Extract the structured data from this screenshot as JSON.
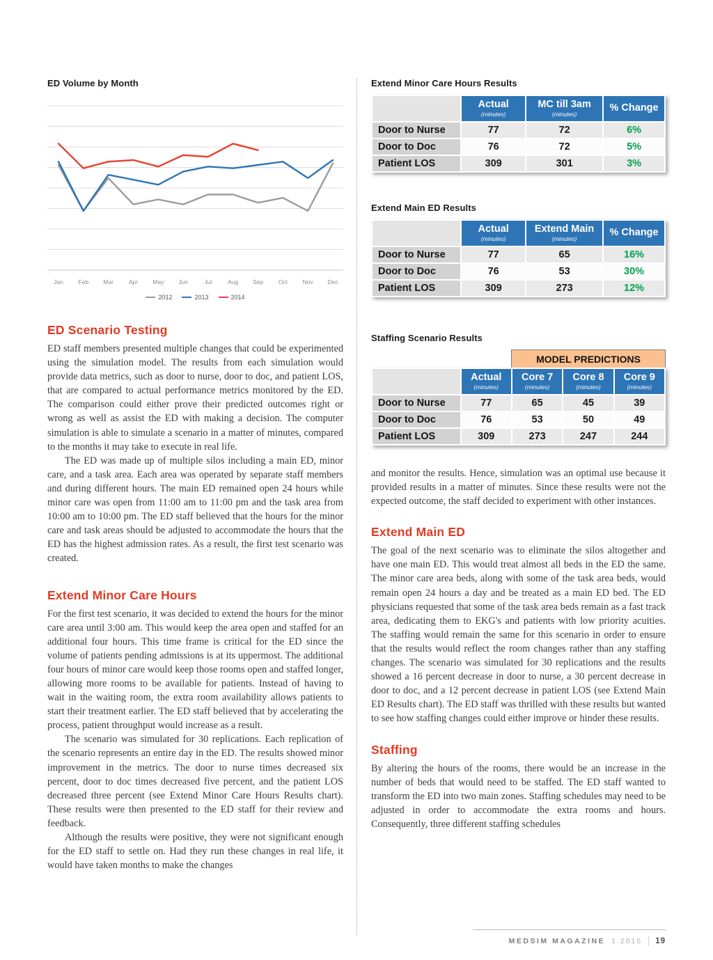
{
  "chart": {
    "label": "ED Volume by Month"
  },
  "chart_data": {
    "type": "line",
    "title": "ED Volume by Month",
    "x": [
      "Jan",
      "Feb",
      "Mar",
      "Apr",
      "May",
      "Jun",
      "Jul",
      "Aug",
      "Sep",
      "Oct",
      "Nov",
      "Dec"
    ],
    "series": [
      {
        "name": "2012",
        "color": "#9b9b9b",
        "values": [
          64,
          36,
          56,
          40,
          43,
          40,
          46,
          46,
          41,
          44,
          36,
          65
        ]
      },
      {
        "name": "2013",
        "color": "#2e75b6",
        "values": [
          66,
          36,
          58,
          55,
          52,
          60,
          63,
          62,
          64,
          66,
          56,
          67
        ]
      },
      {
        "name": "2014",
        "color": "#e8402c",
        "values": [
          77,
          62,
          66,
          67,
          63,
          70,
          69,
          77,
          73
        ]
      }
    ],
    "ylim": [
      0,
      100
    ],
    "grid": true,
    "y_tick_labels_visible": false,
    "legend_position": "bottom"
  },
  "tables": [
    {
      "label": "Extend Minor Care Hours Results",
      "columns": [
        {
          "label": "Actual",
          "sub": "(minutes)"
        },
        {
          "label": "MC till 3am",
          "sub": "(minutes)"
        },
        {
          "label": "% Change",
          "sub": ""
        }
      ],
      "rows": [
        {
          "label": "Door to Nurse",
          "values": [
            "77",
            "72",
            "6%"
          ]
        },
        {
          "label": "Door to Doc",
          "values": [
            "76",
            "72",
            "5%"
          ]
        },
        {
          "label": "Patient LOS",
          "values": [
            "309",
            "301",
            "3%"
          ]
        }
      ]
    },
    {
      "label": "Extend Main ED Results",
      "columns": [
        {
          "label": "Actual",
          "sub": "(minutes)"
        },
        {
          "label": "Extend Main",
          "sub": "(minutes)"
        },
        {
          "label": "% Change",
          "sub": ""
        }
      ],
      "rows": [
        {
          "label": "Door to Nurse",
          "values": [
            "77",
            "65",
            "16%"
          ]
        },
        {
          "label": "Door to Doc",
          "values": [
            "76",
            "53",
            "30%"
          ]
        },
        {
          "label": "Patient LOS",
          "values": [
            "309",
            "273",
            "12%"
          ]
        }
      ]
    },
    {
      "label": "Staffing Scenario Results",
      "banner": "MODEL PREDICTIONS",
      "columns": [
        {
          "label": "Actual",
          "sub": "(minutes)"
        },
        {
          "label": "Core 7",
          "sub": "(minutes)"
        },
        {
          "label": "Core 8",
          "sub": "(minutes)"
        },
        {
          "label": "Core 9",
          "sub": "(minutes)"
        }
      ],
      "rows": [
        {
          "label": "Door to Nurse",
          "values": [
            "77",
            "65",
            "45",
            "39"
          ]
        },
        {
          "label": "Door to Doc",
          "values": [
            "76",
            "53",
            "50",
            "49"
          ]
        },
        {
          "label": "Patient LOS",
          "values": [
            "309",
            "273",
            "247",
            "244"
          ]
        }
      ]
    }
  ],
  "article": {
    "left": [
      {
        "heading": "ED Scenario Testing",
        "paragraphs": [
          "ED staff members presented multiple changes that could be experimented using the simulation model. The results from each simulation would provide data metrics, such as door to nurse, door to doc, and patient LOS, that are compared to actual performance metrics monitored by the ED. The comparison could either prove their predicted outcomes right or wrong as well as assist the ED with making a decision. The computer simulation is able to simulate a scenario in a matter of minutes, compared to the months it may take to execute in real life.",
          "The ED was made up of multiple silos including a main ED, minor care, and a task area. Each area was operated by separate staff members and during different hours. The main ED remained open 24 hours while minor care was open from 11:00 am to 11:00 pm and the task area from 10:00 am to 10:00 pm. The ED staff believed that the hours for the minor care and task areas should be adjusted to accommodate the hours that the ED has the highest admission rates. As a result, the first test scenario was created."
        ]
      },
      {
        "heading": "Extend Minor Care Hours",
        "paragraphs": [
          "For the first test scenario, it was decided to extend the hours for the minor care area until 3:00 am. This would keep the area open and staffed for an additional four hours. This time frame is critical for the ED since the volume of patients pending admissions is at its uppermost. The additional four hours of minor care would keep those rooms open and staffed longer, allowing more rooms to be available for patients. Instead of having to wait in the waiting room, the extra room availability allows patients to start their treatment earlier. The ED staff believed that by accelerating the process, patient throughput would increase as a result.",
          "The scenario was simulated for 30 replications. Each replication of the scenario represents an entire day in the ED. The results showed minor improvement in the metrics. The door to nurse times decreased six percent, door to doc times decreased five percent, and the patient LOS decreased three percent (see Extend Minor Care Hours Results chart). These results were then presented to the ED staff for their review and feedback.",
          "Although the results were positive, they were not significant enough for the ED staff to settle on. Had they run these changes in real life, it would have taken months to make the changes"
        ]
      }
    ],
    "right": [
      {
        "heading": "",
        "paragraphs": [
          "and monitor the results. Hence, simulation was an optimal use because it provided results in a matter of minutes. Since these results were not the expected outcome, the staff decided to experiment with other instances."
        ]
      },
      {
        "heading": "Extend Main ED",
        "paragraphs": [
          "The goal of the next scenario was to eliminate the silos altogether and have one main ED. This would treat almost all beds in the ED the same. The minor care area beds, along with some of the task area beds, would remain open 24 hours a day and be treated as a main ED bed. The ED physicians requested that some of the task area beds remain as a fast track area, dedicating them to EKG's and patients with low priority acuities. The staffing would remain the same for this scenario in order to ensure that the results would reflect the room changes rather than any staffing changes. The scenario was simulated for 30 replications and the results showed a 16 percent decrease in door to nurse, a 30 percent decrease in door to doc, and a 12 percent decrease in patient LOS (see Extend Main ED Results chart). The ED staff was thrilled with these results but wanted to see how staffing changes could either improve or hinder these results."
        ]
      },
      {
        "heading": "Staffing",
        "paragraphs": [
          "By altering the hours of the rooms, there would be an increase in the number of beds that would need to be staffed. The ED staff wanted to transform the ED into two main zones. Staffing schedules may need to be adjusted in order to accommodate the extra rooms and hours. Consequently, three different staffing schedules"
        ]
      }
    ]
  },
  "footer": {
    "magazine_name": "MEDSIM MAGAZINE",
    "issue": "1.2015",
    "page_number": "19"
  },
  "colors": {
    "heading_red": "#e23b25",
    "table_header_blue": "#2e75b6",
    "positive_green": "#00a14e",
    "banner_orange": "#fac08f"
  }
}
